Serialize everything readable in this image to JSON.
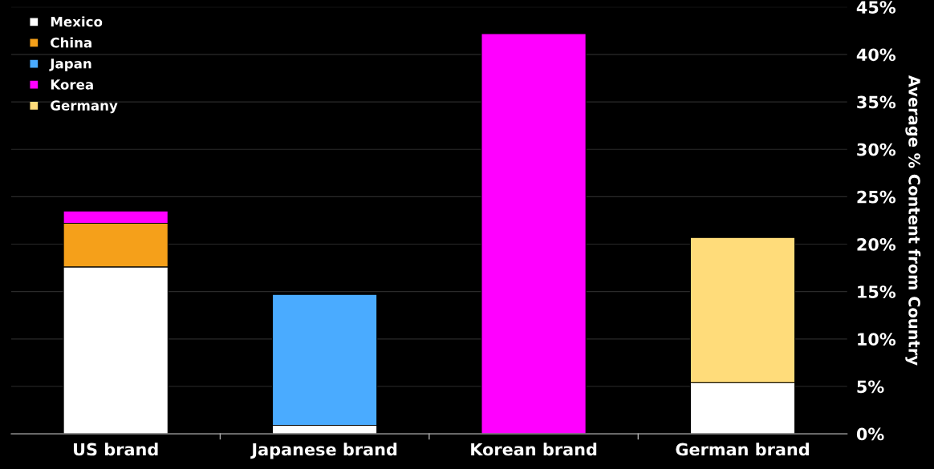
{
  "chart_data": {
    "type": "bar",
    "stacked": true,
    "ylabel": "Average % Content from Country",
    "categories": [
      "US brand",
      "Japanese brand",
      "Korean brand",
      "German brand"
    ],
    "series": [
      {
        "name": "Mexico",
        "color": "#ffffff",
        "values": [
          17.6,
          0.9,
          null,
          5.4
        ]
      },
      {
        "name": "China",
        "color": "#f5a01a",
        "values": [
          4.6,
          null,
          null,
          null
        ]
      },
      {
        "name": "Japan",
        "color": "#4aabff",
        "values": [
          null,
          13.8,
          null,
          null
        ]
      },
      {
        "name": "Korea",
        "color": "#ff00ff",
        "values": [
          1.3,
          null,
          42.2,
          null
        ]
      },
      {
        "name": "Germany",
        "color": "#ffdc7a",
        "values": [
          null,
          null,
          null,
          15.3
        ]
      }
    ],
    "ylim": [
      0,
      45
    ],
    "yticks": [
      {
        "value": 0,
        "label": "0%"
      },
      {
        "value": 5,
        "label": "5%"
      },
      {
        "value": 10,
        "label": "10%"
      },
      {
        "value": 15,
        "label": "15%"
      },
      {
        "value": 20,
        "label": "20%"
      },
      {
        "value": 25,
        "label": "25%"
      },
      {
        "value": 30,
        "label": "30%"
      },
      {
        "value": 35,
        "label": "35%"
      },
      {
        "value": 40,
        "label": "40%"
      },
      {
        "value": 45,
        "label": "45%"
      }
    ],
    "grid": "y",
    "legend": "top left"
  }
}
